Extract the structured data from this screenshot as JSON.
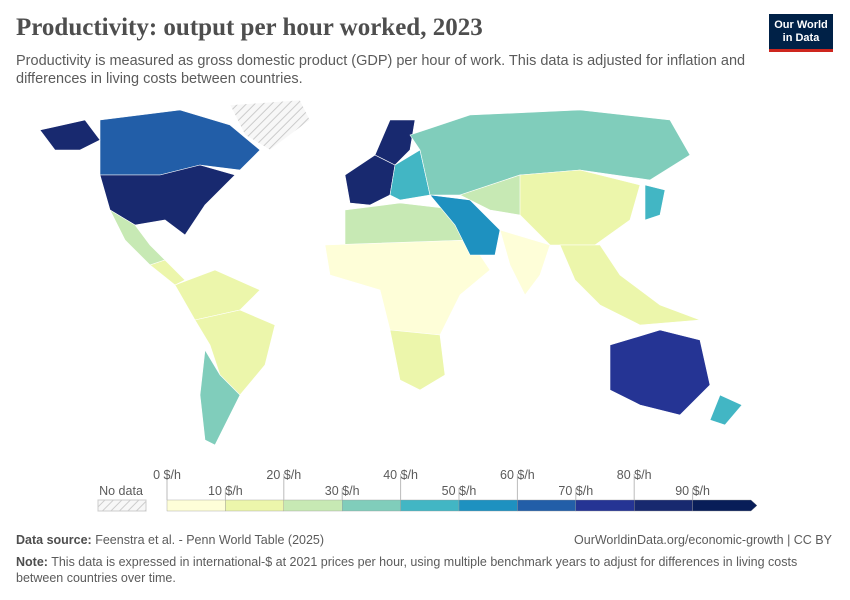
{
  "header": {
    "title": "Productivity: output per hour worked, 2023",
    "subtitle": "Productivity is measured as gross domestic product (GDP) per hour of work. This data is adjusted for inflation and differences in living costs between countries.",
    "logo": "Our World in Data"
  },
  "legend": {
    "no_data_label": "No data",
    "upper_labels": [
      "0 $/h",
      "20 $/h",
      "40 $/h",
      "60 $/h",
      "80 $/h"
    ],
    "lower_labels": [
      "10 $/h",
      "30 $/h",
      "50 $/h",
      "70 $/h",
      "90 $/h"
    ],
    "bin_colors": [
      "#fefed8",
      "#ecf6ab",
      "#c7e9b4",
      "#80cdbb",
      "#42b6c4",
      "#1e91c0",
      "#225ea8",
      "#253494",
      "#18296f",
      "#081d58"
    ],
    "no_data_color": "#e0e0e0"
  },
  "map_regions": [
    {
      "region": "canada",
      "bin": 6
    },
    {
      "region": "usa",
      "bin": 8
    },
    {
      "region": "alaska",
      "bin": 8
    },
    {
      "region": "greenland",
      "bin": -1
    },
    {
      "region": "mexico",
      "bin": 2
    },
    {
      "region": "central-america",
      "bin": 1
    },
    {
      "region": "south-america-north",
      "bin": 1
    },
    {
      "region": "brazil",
      "bin": 1
    },
    {
      "region": "argentina-chile",
      "bin": 3
    },
    {
      "region": "western-europe",
      "bin": 8
    },
    {
      "region": "scandinavia",
      "bin": 8
    },
    {
      "region": "eastern-europe",
      "bin": 4
    },
    {
      "region": "russia",
      "bin": 3
    },
    {
      "region": "north-africa",
      "bin": 2
    },
    {
      "region": "sub-saharan-africa",
      "bin": 0
    },
    {
      "region": "southern-africa",
      "bin": 1
    },
    {
      "region": "middle-east",
      "bin": 5
    },
    {
      "region": "central-asia",
      "bin": 2
    },
    {
      "region": "china",
      "bin": 1
    },
    {
      "region": "india",
      "bin": 0
    },
    {
      "region": "southeast-asia",
      "bin": 1
    },
    {
      "region": "japan",
      "bin": 4
    },
    {
      "region": "australia",
      "bin": 7
    },
    {
      "region": "new-zealand",
      "bin": 4
    }
  ],
  "footer": {
    "source_label": "Data source:",
    "source": " Feenstra et al. - Penn World Table (2025)",
    "url": "OurWorldinData.org/economic-growth | CC BY",
    "note_label": "Note:",
    "note": " This data is expressed in international-$ at 2021 prices per hour, using multiple benchmark years to adjust for differences in living costs between countries over time."
  }
}
